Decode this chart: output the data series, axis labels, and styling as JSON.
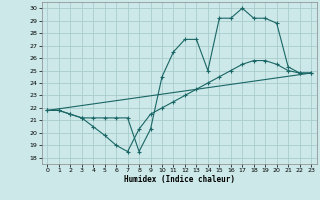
{
  "xlabel": "Humidex (Indice chaleur)",
  "bg_color": "#cce8e8",
  "grid_color": "#aacccc",
  "line_color": "#1a6666",
  "xlim": [
    -0.5,
    23.5
  ],
  "ylim": [
    17.5,
    30.5
  ],
  "yticks": [
    18,
    19,
    20,
    21,
    22,
    23,
    24,
    25,
    26,
    27,
    28,
    29,
    30
  ],
  "xticks": [
    0,
    1,
    2,
    3,
    4,
    5,
    6,
    7,
    8,
    9,
    10,
    11,
    12,
    13,
    14,
    15,
    16,
    17,
    18,
    19,
    20,
    21,
    22,
    23
  ],
  "line1_x": [
    0,
    1,
    2,
    3,
    4,
    5,
    6,
    7,
    8,
    9,
    10,
    11,
    12,
    13,
    14,
    15,
    16,
    17,
    18,
    19,
    20,
    21,
    22,
    23
  ],
  "line1_y": [
    21.8,
    21.8,
    21.5,
    21.2,
    20.5,
    19.8,
    19.0,
    18.5,
    20.3,
    21.5,
    22.0,
    22.5,
    23.0,
    23.5,
    24.0,
    24.5,
    25.0,
    25.5,
    25.8,
    25.8,
    25.5,
    25.0,
    24.8,
    24.8
  ],
  "line2_x": [
    0,
    1,
    2,
    3,
    4,
    5,
    6,
    7,
    8,
    9,
    10,
    11,
    12,
    13,
    14,
    15,
    16,
    17,
    18,
    19,
    20,
    21,
    22,
    23
  ],
  "line2_y": [
    21.8,
    21.8,
    21.5,
    21.2,
    21.2,
    21.2,
    21.2,
    21.2,
    18.5,
    20.3,
    24.5,
    26.5,
    27.5,
    27.5,
    25.0,
    29.2,
    29.2,
    30.0,
    29.2,
    29.2,
    28.8,
    25.3,
    24.8,
    24.8
  ],
  "line3_x": [
    0,
    23
  ],
  "line3_y": [
    21.8,
    24.8
  ]
}
